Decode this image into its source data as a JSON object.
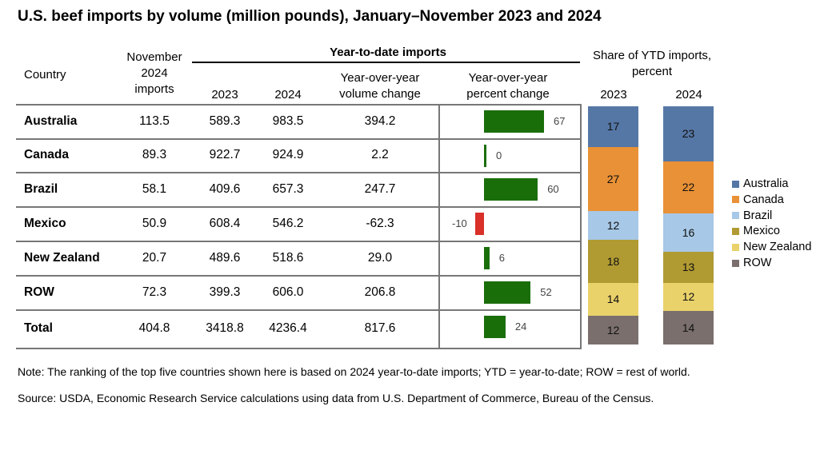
{
  "title": "U.S. beef imports by volume (million pounds), January–November 2023 and 2024",
  "headers": {
    "country": "Country",
    "november": [
      "November",
      "2024",
      "imports"
    ],
    "ytd_group": "Year-to-date imports",
    "y2023": "2023",
    "y2024": "2024",
    "volume_change": [
      "Year-over-year",
      "volume change"
    ],
    "percent_change": [
      "Year-over-year",
      "percent change"
    ],
    "share": [
      "Share of YTD imports,",
      "percent"
    ],
    "share_2023": "2023",
    "share_2024": "2024"
  },
  "chart_data": [
    {
      "type": "table",
      "columns": [
        "Country",
        "November 2024 imports",
        "2023",
        "2024",
        "Year-over-year volume change",
        "Year-over-year percent change"
      ],
      "rows": [
        {
          "country": "Australia",
          "nov": "113.5",
          "y2023": "589.3",
          "y2024": "983.5",
          "vol": "394.2",
          "pct": 67
        },
        {
          "country": "Canada",
          "nov": "89.3",
          "y2023": "922.7",
          "y2024": "924.9",
          "vol": "2.2",
          "pct": 0
        },
        {
          "country": "Brazil",
          "nov": "58.1",
          "y2023": "409.6",
          "y2024": "657.3",
          "vol": "247.7",
          "pct": 60
        },
        {
          "country": "Mexico",
          "nov": "50.9",
          "y2023": "608.4",
          "y2024": "546.2",
          "vol": "-62.3",
          "pct": -10
        },
        {
          "country": "New Zealand",
          "nov": "20.7",
          "y2023": "489.6",
          "y2024": "518.6",
          "vol": "29.0",
          "pct": 6
        },
        {
          "country": "ROW",
          "nov": "72.3",
          "y2023": "399.3",
          "y2024": "606.0",
          "vol": "206.8",
          "pct": 52
        },
        {
          "country": "Total",
          "nov": "404.8",
          "y2023": "3418.8",
          "y2024": "4236.4",
          "vol": "817.6",
          "pct": 24
        }
      ],
      "bar_colors": {
        "positive": "#1a6e0a",
        "negative": "#d9302a"
      }
    },
    {
      "type": "bar",
      "stacked": true,
      "categories": [
        "2023",
        "2024"
      ],
      "series": [
        {
          "name": "Australia",
          "color": "#5577a6",
          "values": [
            17,
            23
          ]
        },
        {
          "name": "Canada",
          "color": "#e99136",
          "values": [
            27,
            22
          ]
        },
        {
          "name": "Brazil",
          "color": "#a7c8e6",
          "values": [
            12,
            16
          ]
        },
        {
          "name": "Mexico",
          "color": "#b09a32",
          "values": [
            18,
            13
          ]
        },
        {
          "name": "New Zealand",
          "color": "#ead26a",
          "values": [
            14,
            12
          ]
        },
        {
          "name": "ROW",
          "color": "#7a6f6c",
          "values": [
            12,
            14
          ]
        }
      ],
      "legend": "right"
    }
  ],
  "note": "Note: The ranking of the top five countries shown here is based on 2024 year-to-date imports; YTD = year-to-date; ROW = rest of world.",
  "source": "Source: USDA, Economic Research Service calculations using data from U.S. Department of Commerce, Bureau of the Census."
}
